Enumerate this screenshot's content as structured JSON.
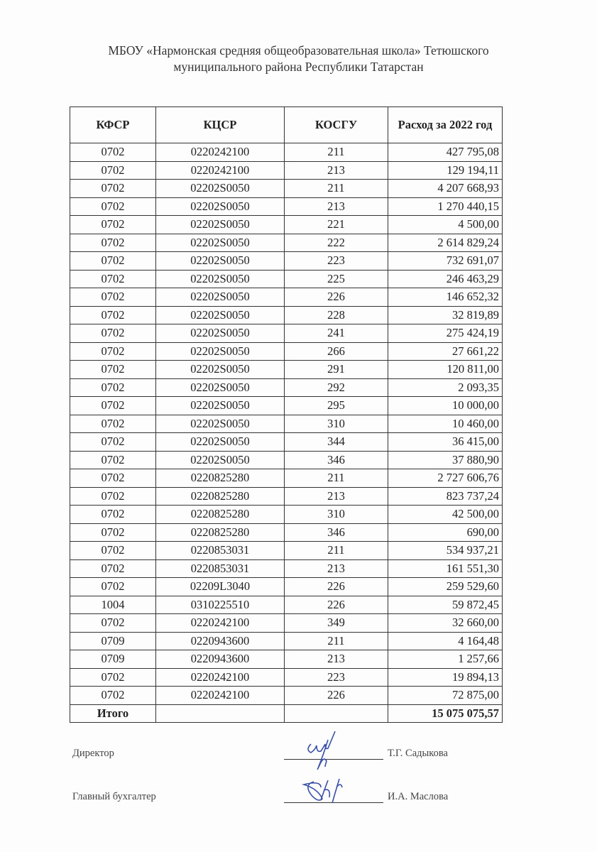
{
  "title_line1": "МБОУ «Нармонская средняя общеобразовательная школа» Тетюшского",
  "title_line2": "муниципального района Республики Татарстан",
  "table": {
    "headers": [
      "КФСР",
      "КЦСР",
      "КОСГУ",
      "Расход за 2022 год"
    ],
    "rows": [
      [
        "0702",
        "0220242100",
        "211",
        "427 795,08"
      ],
      [
        "0702",
        "0220242100",
        "213",
        "129 194,11"
      ],
      [
        "0702",
        "02202S0050",
        "211",
        "4 207 668,93"
      ],
      [
        "0702",
        "02202S0050",
        "213",
        "1 270 440,15"
      ],
      [
        "0702",
        "02202S0050",
        "221",
        "4 500,00"
      ],
      [
        "0702",
        "02202S0050",
        "222",
        "2 614 829,24"
      ],
      [
        "0702",
        "02202S0050",
        "223",
        "732 691,07"
      ],
      [
        "0702",
        "02202S0050",
        "225",
        "246 463,29"
      ],
      [
        "0702",
        "02202S0050",
        "226",
        "146 652,32"
      ],
      [
        "0702",
        "02202S0050",
        "228",
        "32 819,89"
      ],
      [
        "0702",
        "02202S0050",
        "241",
        "275 424,19"
      ],
      [
        "0702",
        "02202S0050",
        "266",
        "27 661,22"
      ],
      [
        "0702",
        "02202S0050",
        "291",
        "120 811,00"
      ],
      [
        "0702",
        "02202S0050",
        "292",
        "2 093,35"
      ],
      [
        "0702",
        "02202S0050",
        "295",
        "10 000,00"
      ],
      [
        "0702",
        "02202S0050",
        "310",
        "10 460,00"
      ],
      [
        "0702",
        "02202S0050",
        "344",
        "36 415,00"
      ],
      [
        "0702",
        "02202S0050",
        "346",
        "37 880,90"
      ],
      [
        "0702",
        "0220825280",
        "211",
        "2 727 606,76"
      ],
      [
        "0702",
        "0220825280",
        "213",
        "823 737,24"
      ],
      [
        "0702",
        "0220825280",
        "310",
        "42 500,00"
      ],
      [
        "0702",
        "0220825280",
        "346",
        "690,00"
      ],
      [
        "0702",
        "0220853031",
        "211",
        "534 937,21"
      ],
      [
        "0702",
        "0220853031",
        "213",
        "161 551,30"
      ],
      [
        "0702",
        "02209L3040",
        "226",
        "259 529,60"
      ],
      [
        "1004",
        "0310225510",
        "226",
        "59 872,45"
      ],
      [
        "0702",
        "0220242100",
        "349",
        "32 660,00"
      ],
      [
        "0709",
        "0220943600",
        "211",
        "4 164,48"
      ],
      [
        "0709",
        "0220943600",
        "213",
        "1 257,66"
      ],
      [
        "0702",
        "0220242100",
        "223",
        "19 894,13"
      ],
      [
        "0702",
        "0220242100",
        "226",
        "72 875,00"
      ]
    ],
    "total_label": "Итого",
    "total_value": "15 075 075,57"
  },
  "signatures": [
    {
      "role": "Директор",
      "name": "Т.Г. Садыкова"
    },
    {
      "role": "Главный бухгалтер",
      "name": "И.А. Маслова"
    }
  ],
  "colors": {
    "signature_ink": "#3a4fa8"
  }
}
